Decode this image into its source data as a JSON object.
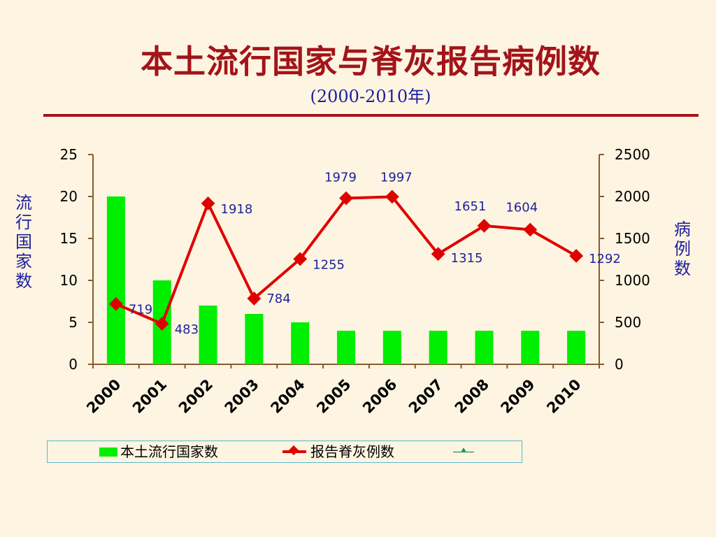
{
  "title": "本土流行国家与脊灰报告病例数",
  "subtitle": "(2000-2010年)",
  "colors": {
    "background": "#fdf5e1",
    "title": "#a3141a",
    "bars": "#00ee00",
    "line": "#e00000",
    "labels": "#1f1f9e",
    "axes": "#8b5a2b"
  },
  "chart_data": {
    "type": "bar+line",
    "title": "本土流行国家与脊灰报告病例数",
    "subtitle": "(2000-2010年)",
    "categories": [
      "2000",
      "2001",
      "2002",
      "2003",
      "2004",
      "2005",
      "2006",
      "2007",
      "2008",
      "2009",
      "2010"
    ],
    "series": [
      {
        "name": "本土流行国家数",
        "type": "bar",
        "axis": "left",
        "values": [
          20,
          10,
          7,
          6,
          5,
          4,
          4,
          4,
          4,
          4,
          4
        ]
      },
      {
        "name": "报告脊灰例数",
        "type": "line",
        "axis": "right",
        "values": [
          719,
          483,
          1918,
          784,
          1255,
          1979,
          1997,
          1315,
          1651,
          1604,
          1292
        ],
        "data_labels": [
          "719",
          "483",
          "1918",
          "784",
          "1255",
          "1979",
          "1997",
          "1315",
          "1651",
          "1604",
          "1292"
        ]
      }
    ],
    "ylabel_left": "流行国家数",
    "ylabel_right": "病例数",
    "ylim_left": [
      0,
      25
    ],
    "yticks_left": [
      "0",
      "5",
      "10",
      "15",
      "20",
      "25"
    ],
    "ylim_right": [
      0,
      2500
    ],
    "yticks_right": [
      "0",
      "500",
      "1000",
      "1500",
      "2000",
      "2500"
    ],
    "grid": false,
    "legend_position": "bottom"
  },
  "legend": {
    "bar_label": "本土流行国家数",
    "line_label": "报告脊灰例数"
  }
}
